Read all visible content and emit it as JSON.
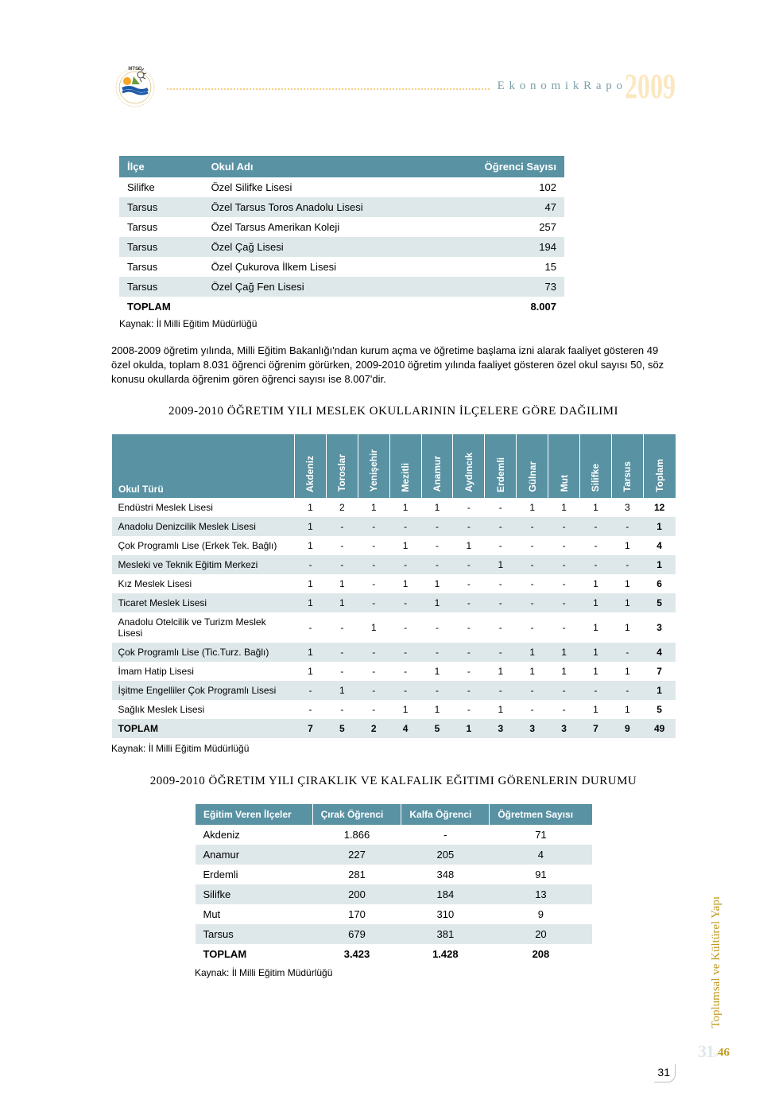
{
  "header": {
    "title": "E k o n o m i k R a p o",
    "year": "2009"
  },
  "table1": {
    "headers": [
      "İlçe",
      "Okul Adı",
      "Öğrenci Sayısı"
    ],
    "rows": [
      [
        "Silifke",
        "Özel Silifke Lisesi",
        "102"
      ],
      [
        "Tarsus",
        "Özel Tarsus Toros Anadolu Lisesi",
        "47"
      ],
      [
        "Tarsus",
        "Özel Tarsus Amerikan Koleji",
        "257"
      ],
      [
        "Tarsus",
        "Özel Çağ Lisesi",
        "194"
      ],
      [
        "Tarsus",
        "Özel Çukurova İlkem Lisesi",
        "15"
      ],
      [
        "Tarsus",
        "Özel Çağ Fen Lisesi",
        "73"
      ],
      [
        "TOPLAM",
        "",
        "8.007"
      ]
    ],
    "source": "Kaynak: İl Milli Eğitim Müdürlüğü"
  },
  "paragraph1": "2008-2009 öğretim yılında, Milli Eğitim Bakanlığı'ndan kurum açma ve öğretime başlama izni alarak faaliyet gösteren 49 özel okulda, toplam 8.031 öğrenci öğrenim görürken, 2009-2010 öğretim yılında faaliyet gösteren özel okul sayısı 50, söz konusu okullarda öğrenim gören öğrenci sayısı ise 8.007'dir.",
  "section2": {
    "title": "2009-2010 Öğretim Yılı Meslek Okullarının İlçelere Göre Dağılımı",
    "columns": [
      "Okul Türü",
      "Akdeniz",
      "Toroslar",
      "Yenişehir",
      "Mezitli",
      "Anamur",
      "Aydıncık",
      "Erdemli",
      "Gülnar",
      "Mut",
      "Silifke",
      "Tarsus",
      "Toplam"
    ],
    "rows": [
      [
        "Endüstri Meslek Lisesi",
        "1",
        "2",
        "1",
        "1",
        "1",
        "-",
        "-",
        "1",
        "1",
        "1",
        "3",
        "12"
      ],
      [
        "Anadolu Denizcilik Meslek Lisesi",
        "1",
        "-",
        "-",
        "-",
        "-",
        "-",
        "-",
        "-",
        "-",
        "-",
        "-",
        "1"
      ],
      [
        "Çok Programlı Lise (Erkek Tek. Bağlı)",
        "1",
        "-",
        "-",
        "1",
        "-",
        "1",
        "-",
        "-",
        "-",
        "-",
        "1",
        "4"
      ],
      [
        "Mesleki ve Teknik Eğitim Merkezi",
        "-",
        "-",
        "-",
        "-",
        "-",
        "-",
        "1",
        "-",
        "-",
        "-",
        "-",
        "1"
      ],
      [
        "Kız Meslek Lisesi",
        "1",
        "1",
        "-",
        "1",
        "1",
        "-",
        "-",
        "-",
        "-",
        "1",
        "1",
        "6"
      ],
      [
        "Ticaret Meslek Lisesi",
        "1",
        "1",
        "-",
        "-",
        "1",
        "-",
        "-",
        "-",
        "-",
        "1",
        "1",
        "5"
      ],
      [
        "Anadolu Otelcilik ve Turizm Meslek Lisesi",
        "-",
        "-",
        "1",
        "-",
        "-",
        "-",
        "-",
        "-",
        "-",
        "1",
        "1",
        "3"
      ],
      [
        "Çok Programlı Lise (Tic.Turz. Bağlı)",
        "1",
        "-",
        "-",
        "-",
        "-",
        "-",
        "-",
        "1",
        "1",
        "1",
        "-",
        "4"
      ],
      [
        "İmam Hatip Lisesi",
        "1",
        "-",
        "-",
        "-",
        "1",
        "-",
        "1",
        "1",
        "1",
        "1",
        "1",
        "7"
      ],
      [
        "İşitme Engelliler Çok Programlı Lisesi",
        "-",
        "1",
        "-",
        "-",
        "-",
        "-",
        "-",
        "-",
        "-",
        "-",
        "-",
        "1"
      ],
      [
        "Sağlık Meslek Lisesi",
        "-",
        "-",
        "-",
        "1",
        "1",
        "-",
        "1",
        "-",
        "-",
        "1",
        "1",
        "5"
      ],
      [
        "TOPLAM",
        "7",
        "5",
        "2",
        "4",
        "5",
        "1",
        "3",
        "3",
        "3",
        "7",
        "9",
        "49"
      ]
    ],
    "source": "Kaynak: İl Milli Eğitim Müdürlüğü"
  },
  "section3": {
    "title": "2009-2010 Öğretim Yılı Çıraklık ve Kalfalık Eğitimi Görenlerin Durumu",
    "columns": [
      "Eğitim Veren İlçeler",
      "Çırak Öğrenci",
      "Kalfa Öğrenci",
      "Öğretmen Sayısı"
    ],
    "rows": [
      [
        "Akdeniz",
        "1.866",
        "-",
        "71"
      ],
      [
        "Anamur",
        "227",
        "205",
        "4"
      ],
      [
        "Erdemli",
        "281",
        "348",
        "91"
      ],
      [
        "Silifke",
        "200",
        "184",
        "13"
      ],
      [
        "Mut",
        "170",
        "310",
        "9"
      ],
      [
        "Tarsus",
        "679",
        "381",
        "20"
      ],
      [
        "TOPLAM",
        "3.423",
        "1.428",
        "208"
      ]
    ],
    "source": "Kaynak: İl Milli Eğitim Müdürlüğü"
  },
  "sidebar": {
    "text": "Toplumsal ve Kültürel Yapı",
    "large": "31",
    "small": "46"
  },
  "pagenum": "31",
  "colors": {
    "header_bg": "#5892a3",
    "alt_row": "#dee8ea",
    "accent": "#c09a1e",
    "dotted": "#f5d085",
    "header_text": "#7b9fa8"
  }
}
